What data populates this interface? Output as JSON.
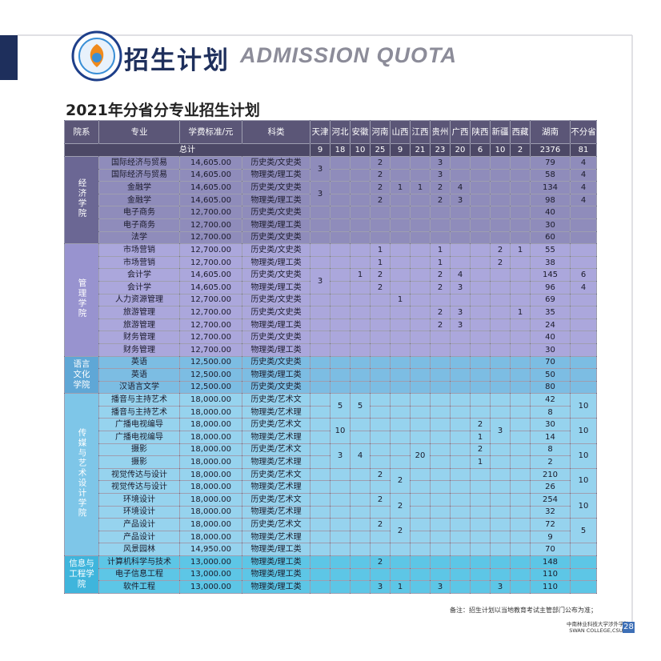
{
  "header": {
    "title": "招生计划",
    "subtitle": "ADMISSION QUOTA"
  },
  "section_title": "2021年分省分专业招生计划",
  "table": {
    "headers": [
      "院系",
      "专业",
      "学费标准/元",
      "科类",
      "天津",
      "河北",
      "安徽",
      "河南",
      "山西",
      "江西",
      "贵州",
      "广西",
      "陕西",
      "新疆",
      "西藏",
      "湖南",
      "不分省"
    ],
    "total_label": "总计",
    "totals": [
      9,
      18,
      10,
      25,
      9,
      21,
      23,
      20,
      6,
      10,
      2,
      2376,
      81
    ],
    "departments": [
      {
        "name": "经济学院",
        "rows": [
          {
            "major": "国际经济与贸易",
            "fee": "14,605.00",
            "category": "历史类/文史类",
            "quota": [
              3,
              null,
              null,
              2,
              null,
              null,
              3,
              null,
              null,
              null,
              null,
              79,
              4
            ]
          },
          {
            "major": "国际经济与贸易",
            "fee": "14,605.00",
            "category": "物理类/理工类",
            "quota": [
              null,
              null,
              null,
              2,
              null,
              null,
              3,
              null,
              null,
              null,
              null,
              58,
              4
            ]
          },
          {
            "major": "金融学",
            "fee": "14,605.00",
            "category": "历史类/文史类",
            "quota": [
              3,
              null,
              null,
              2,
              1,
              1,
              2,
              4,
              null,
              null,
              null,
              134,
              4
            ]
          },
          {
            "major": "金融学",
            "fee": "14,605.00",
            "category": "物理类/理工类",
            "quota": [
              null,
              null,
              null,
              2,
              null,
              null,
              2,
              3,
              null,
              null,
              null,
              98,
              4
            ]
          },
          {
            "major": "电子商务",
            "fee": "12,700.00",
            "category": "历史类/文史类",
            "quota": [
              null,
              null,
              null,
              null,
              null,
              null,
              null,
              null,
              null,
              null,
              null,
              40,
              null
            ]
          },
          {
            "major": "电子商务",
            "fee": "12,700.00",
            "category": "物理类/理工类",
            "quota": [
              null,
              null,
              null,
              null,
              null,
              null,
              null,
              null,
              null,
              null,
              null,
              30,
              null
            ]
          },
          {
            "major": "法学",
            "fee": "12,700.00",
            "category": "历史类/文史类",
            "quota": [
              null,
              null,
              null,
              null,
              null,
              null,
              null,
              null,
              null,
              null,
              null,
              60,
              null
            ]
          }
        ]
      },
      {
        "name": "管理学院",
        "rows": [
          {
            "major": "市场营销",
            "fee": "12,700.00",
            "category": "历史类/文史类",
            "quota": [
              null,
              null,
              null,
              1,
              null,
              null,
              1,
              null,
              null,
              2,
              1,
              55,
              null
            ]
          },
          {
            "major": "市场营销",
            "fee": "12,700.00",
            "category": "物理类/理工类",
            "quota": [
              null,
              null,
              null,
              1,
              null,
              null,
              1,
              null,
              null,
              2,
              null,
              38,
              null
            ]
          },
          {
            "major": "会计学",
            "fee": "14,605.00",
            "category": "历史类/文史类",
            "quota": [
              3,
              null,
              1,
              2,
              null,
              null,
              2,
              4,
              null,
              null,
              null,
              145,
              6
            ]
          },
          {
            "major": "会计学",
            "fee": "14,605.00",
            "category": "物理类/理工类",
            "quota": [
              null,
              null,
              null,
              2,
              null,
              null,
              2,
              3,
              null,
              null,
              null,
              96,
              4
            ]
          },
          {
            "major": "人力资源管理",
            "fee": "12,700.00",
            "category": "历史类/文史类",
            "quota": [
              null,
              null,
              null,
              null,
              1,
              null,
              null,
              null,
              null,
              null,
              null,
              69,
              null
            ]
          },
          {
            "major": "旅游管理",
            "fee": "12,700.00",
            "category": "历史类/文史类",
            "quota": [
              null,
              null,
              null,
              null,
              null,
              null,
              2,
              3,
              null,
              null,
              1,
              35,
              null
            ]
          },
          {
            "major": "旅游管理",
            "fee": "12,700.00",
            "category": "物理类/理工类",
            "quota": [
              null,
              null,
              null,
              null,
              null,
              null,
              2,
              3,
              null,
              null,
              null,
              24,
              null
            ]
          },
          {
            "major": "财务管理",
            "fee": "12,700.00",
            "category": "历史类/文史类",
            "quota": [
              null,
              null,
              null,
              null,
              null,
              null,
              null,
              null,
              null,
              null,
              null,
              40,
              null
            ]
          },
          {
            "major": "财务管理",
            "fee": "12,700.00",
            "category": "物理类/理工类",
            "quota": [
              null,
              null,
              null,
              null,
              null,
              null,
              null,
              null,
              null,
              null,
              null,
              30,
              null
            ]
          }
        ]
      },
      {
        "name": "语言文化学院",
        "rows": [
          {
            "major": "英语",
            "fee": "12,500.00",
            "category": "历史类/文史类",
            "quota": [
              null,
              null,
              null,
              null,
              null,
              null,
              null,
              null,
              null,
              null,
              null,
              70,
              null
            ]
          },
          {
            "major": "英语",
            "fee": "12,500.00",
            "category": "物理类/理工类",
            "quota": [
              null,
              null,
              null,
              null,
              null,
              null,
              null,
              null,
              null,
              null,
              null,
              50,
              null
            ]
          },
          {
            "major": "汉语言文学",
            "fee": "12,500.00",
            "category": "历史类/文史类",
            "quota": [
              null,
              null,
              null,
              null,
              null,
              null,
              null,
              null,
              null,
              null,
              null,
              80,
              null
            ]
          }
        ]
      },
      {
        "name": "传媒与艺术设计学院",
        "rows": [
          {
            "major": "播音与主持艺术",
            "fee": "18,000.00",
            "category": "历史类/艺术文",
            "quota": [
              null,
              5,
              5,
              null,
              null,
              null,
              null,
              null,
              null,
              null,
              null,
              42,
              10
            ]
          },
          {
            "major": "播音与主持艺术",
            "fee": "18,000.00",
            "category": "物理类/艺术理",
            "quota": [
              null,
              null,
              null,
              null,
              null,
              null,
              null,
              null,
              null,
              null,
              null,
              8,
              null
            ]
          },
          {
            "major": "广播电视编导",
            "fee": "18,000.00",
            "category": "历史类/艺术文",
            "quota": [
              null,
              10,
              null,
              null,
              null,
              null,
              null,
              null,
              2,
              3,
              null,
              30,
              10
            ]
          },
          {
            "major": "广播电视编导",
            "fee": "18,000.00",
            "category": "物理类/艺术理",
            "quota": [
              null,
              null,
              null,
              null,
              null,
              null,
              null,
              null,
              1,
              null,
              null,
              14,
              null
            ]
          },
          {
            "major": "摄影",
            "fee": "18,000.00",
            "category": "历史类/艺术文",
            "quota": [
              null,
              3,
              4,
              null,
              null,
              20,
              null,
              null,
              2,
              null,
              null,
              8,
              10
            ]
          },
          {
            "major": "摄影",
            "fee": "18,000.00",
            "category": "物理类/艺术理",
            "quota": [
              null,
              null,
              null,
              null,
              null,
              null,
              null,
              null,
              1,
              null,
              null,
              2,
              null
            ]
          },
          {
            "major": "视觉传达与设计",
            "fee": "18,000.00",
            "category": "历史类/艺术文",
            "quota": [
              null,
              null,
              null,
              2,
              2,
              null,
              null,
              null,
              null,
              null,
              null,
              210,
              10
            ]
          },
          {
            "major": "视觉传达与设计",
            "fee": "18,000.00",
            "category": "物理类/艺术理",
            "quota": [
              null,
              null,
              null,
              null,
              null,
              null,
              null,
              null,
              null,
              null,
              null,
              26,
              null
            ]
          },
          {
            "major": "环境设计",
            "fee": "18,000.00",
            "category": "历史类/艺术文",
            "quota": [
              null,
              null,
              null,
              2,
              2,
              null,
              null,
              null,
              null,
              null,
              null,
              254,
              10
            ]
          },
          {
            "major": "环境设计",
            "fee": "18,000.00",
            "category": "物理类/艺术理",
            "quota": [
              null,
              null,
              null,
              null,
              null,
              null,
              null,
              null,
              null,
              null,
              null,
              32,
              null
            ]
          },
          {
            "major": "产品设计",
            "fee": "18,000.00",
            "category": "历史类/艺术文",
            "quota": [
              null,
              null,
              null,
              2,
              2,
              null,
              null,
              null,
              null,
              null,
              null,
              72,
              5
            ]
          },
          {
            "major": "产品设计",
            "fee": "18,000.00",
            "category": "物理类/艺术理",
            "quota": [
              null,
              null,
              null,
              null,
              null,
              null,
              null,
              null,
              null,
              null,
              null,
              9,
              null
            ]
          },
          {
            "major": "风景园林",
            "fee": "14,950.00",
            "category": "物理类/理工类",
            "quota": [
              null,
              null,
              null,
              null,
              null,
              null,
              null,
              null,
              null,
              null,
              null,
              70,
              null
            ]
          }
        ]
      },
      {
        "name": "信息与工程学院",
        "rows": [
          {
            "major": "计算机科学与技术",
            "fee": "13,000.00",
            "category": "物理类/理工类",
            "quota": [
              null,
              null,
              null,
              2,
              null,
              null,
              null,
              null,
              null,
              null,
              null,
              148,
              null
            ]
          },
          {
            "major": "电子信息工程",
            "fee": "13,000.00",
            "category": "物理类/理工类",
            "quota": [
              null,
              null,
              null,
              null,
              null,
              null,
              null,
              null,
              null,
              null,
              null,
              110,
              null
            ]
          },
          {
            "major": "软件工程",
            "fee": "13,000.00",
            "category": "物理类/理工类",
            "quota": [
              null,
              null,
              null,
              3,
              1,
              null,
              3,
              null,
              null,
              3,
              null,
              110,
              null
            ]
          }
        ]
      }
    ]
  },
  "note": "备注：招生计划以当地教育考试主管部门公布为准；",
  "footer": {
    "school": "中南林业科技大学涉外学院",
    "school_en": "SWAN COLLEGE,CSUFT",
    "page": "28"
  }
}
